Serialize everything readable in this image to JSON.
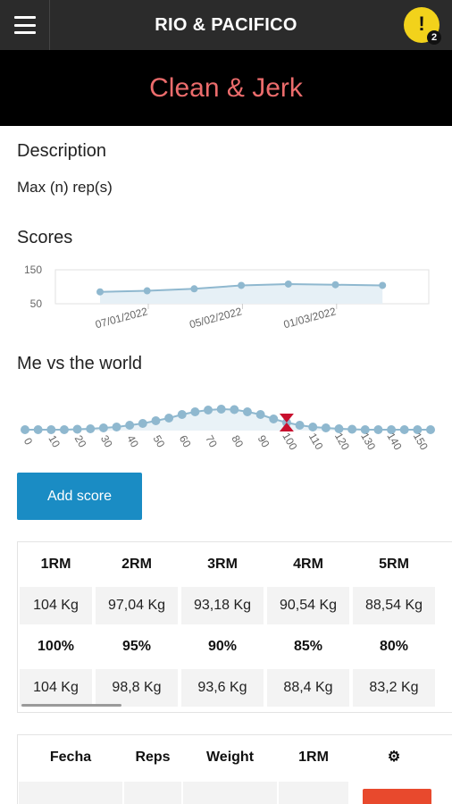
{
  "header": {
    "brand": "RIO & PACIFICO",
    "alert_symbol": "!",
    "alert_count": "2"
  },
  "page": {
    "title": "Clean & Jerk"
  },
  "description": {
    "heading": "Description",
    "text": "Max (n) rep(s)"
  },
  "scores": {
    "heading": "Scores",
    "chart_data": {
      "type": "area",
      "ylim": [
        50,
        150
      ],
      "yticks": [
        "150",
        "50"
      ],
      "xticks": [
        "07/01/2022",
        "05/02/2022",
        "01/03/2022"
      ],
      "values": [
        85,
        88,
        94,
        104,
        108,
        106,
        104
      ],
      "color": "#8fb8cf"
    }
  },
  "world": {
    "heading": "Me vs the world",
    "chart_data": {
      "type": "line",
      "x": [
        0,
        5,
        10,
        15,
        20,
        25,
        30,
        35,
        40,
        45,
        50,
        55,
        60,
        65,
        70,
        75,
        80,
        85,
        90,
        95,
        100,
        105,
        110,
        115,
        120,
        125,
        130,
        135,
        140,
        145,
        150,
        155
      ],
      "values": [
        1,
        1,
        1,
        1,
        1.5,
        2,
        3,
        4,
        6,
        8,
        11,
        14,
        18,
        21,
        23,
        24,
        23.5,
        21,
        18,
        13,
        9,
        6,
        4,
        3,
        2,
        1.5,
        1,
        1,
        1,
        1,
        1,
        1
      ],
      "xticks": [
        "0",
        "10",
        "20",
        "30",
        "40",
        "50",
        "60",
        "70",
        "80",
        "90",
        "100",
        "110",
        "120",
        "130",
        "140",
        "150"
      ],
      "marker_x": 100,
      "color": "#8fb8cf",
      "marker_color": "#c8102e"
    }
  },
  "add_button": {
    "label": "Add score"
  },
  "rm_table": {
    "rm_headers": [
      "1RM",
      "2RM",
      "3RM",
      "4RM",
      "5RM"
    ],
    "rm_values": [
      "104 Kg",
      "97,04 Kg",
      "93,18 Kg",
      "90,54 Kg",
      "88,54 Kg"
    ],
    "pct_headers": [
      "100%",
      "95%",
      "90%",
      "85%",
      "80%"
    ],
    "pct_values": [
      "104 Kg",
      "98,8 Kg",
      "93,6 Kg",
      "88,4 Kg",
      "83,2 Kg"
    ]
  },
  "history": {
    "headers": [
      "Fecha",
      "Reps",
      "Weight",
      "1RM"
    ],
    "settings_icon": "gear-icon",
    "delete_color": "#e8492d"
  }
}
